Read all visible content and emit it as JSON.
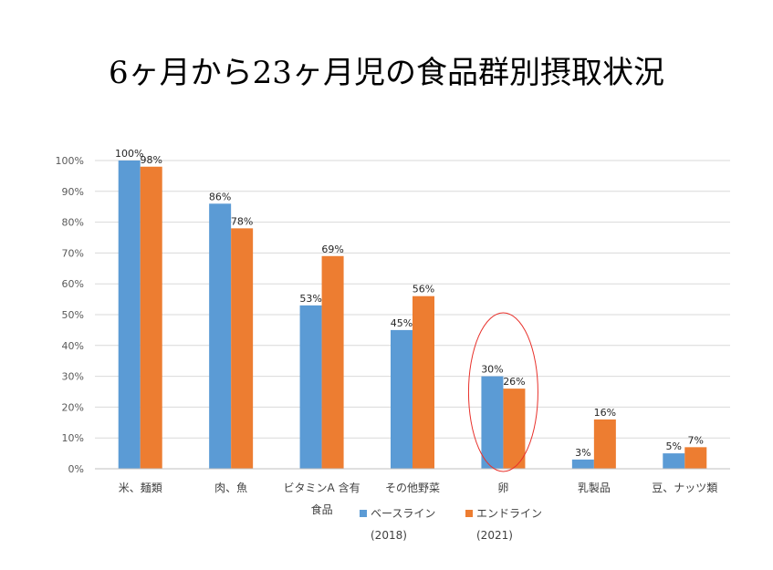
{
  "chart_data": {
    "type": "bar",
    "title": "6ヶ月から23ヶ月児の食品群別摂取状況",
    "categories": [
      "米、麺類",
      "肉、魚",
      "ビタミンA 含有",
      "その他野菜",
      "卵",
      "乳製品",
      "豆、ナッツ類"
    ],
    "category_line2": [
      "",
      "",
      "食品",
      "",
      "",
      "",
      ""
    ],
    "series": [
      {
        "name": "ベースライン",
        "name_line2": "(2018)",
        "color": "#5B9BD5",
        "values": [
          100,
          86,
          53,
          45,
          30,
          3,
          5
        ],
        "labels": [
          "100%",
          "86%",
          "53%",
          "45%",
          "30%",
          "3%",
          "5%"
        ]
      },
      {
        "name": "エンドライン",
        "name_line2": "(2021)",
        "color": "#ED7D31",
        "values": [
          98,
          78,
          69,
          56,
          26,
          16,
          7
        ],
        "labels": [
          "98%",
          "78%",
          "69%",
          "56%",
          "26%",
          "16%",
          "7%"
        ]
      }
    ],
    "yticks": [
      "0%",
      "10%",
      "20%",
      "30%",
      "40%",
      "50%",
      "60%",
      "70%",
      "80%",
      "90%",
      "100%"
    ],
    "ylim": [
      0,
      100
    ],
    "grid": true,
    "legend_position": "bottom",
    "highlight_category": "卵",
    "highlight_color": "#E8302A"
  }
}
